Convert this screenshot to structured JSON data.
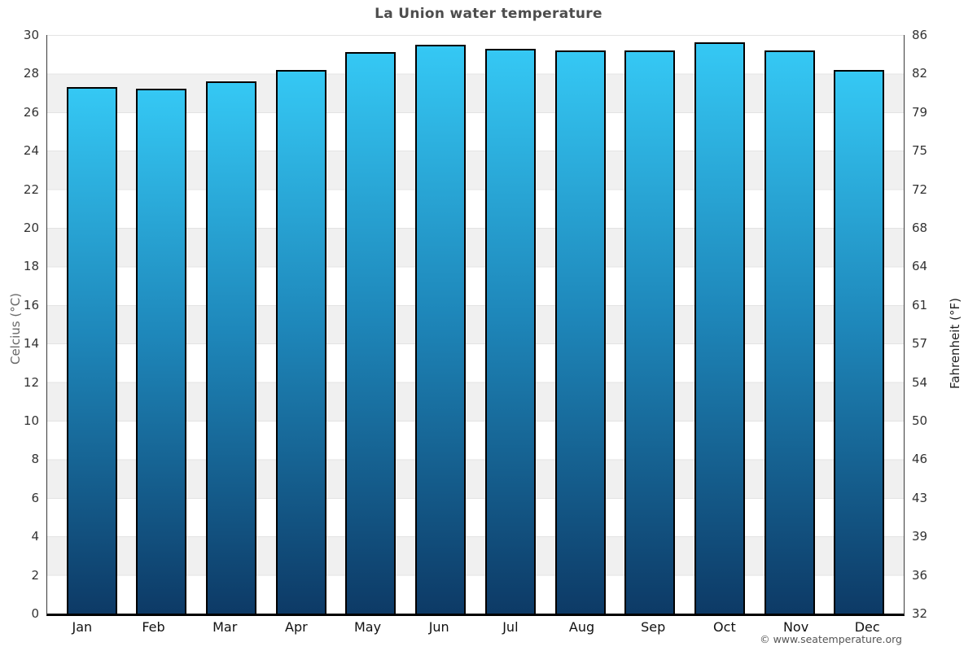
{
  "title": "La Union water temperature",
  "footer": {
    "credit": "© www.seatemperature.org"
  },
  "chart_data": {
    "type": "bar",
    "title": "La Union water temperature",
    "categories": [
      "Jan",
      "Feb",
      "Mar",
      "Apr",
      "May",
      "Jun",
      "Jul",
      "Aug",
      "Sep",
      "Oct",
      "Nov",
      "Dec"
    ],
    "series": [
      {
        "name": "Average water temperature (°C)",
        "values": [
          27.3,
          27.2,
          27.6,
          28.2,
          29.1,
          29.5,
          29.3,
          29.2,
          29.2,
          29.6,
          29.2,
          28.2
        ]
      }
    ],
    "xlabel": "",
    "ylabel_left": "Celcius (°C)",
    "ylabel_right": "Fahrenheit (°F)",
    "ylim_celsius": [
      0,
      30
    ],
    "yticks_celsius": [
      "30",
      "28",
      "26",
      "24",
      "22",
      "20",
      "18",
      "16",
      "14",
      "12",
      "10",
      "8",
      "6",
      "4",
      "2",
      "0"
    ],
    "yticks_fahrenheit": [
      "86",
      "82",
      "79",
      "75",
      "72",
      "68",
      "64",
      "61",
      "57",
      "54",
      "50",
      "46",
      "43",
      "39",
      "36",
      "32"
    ],
    "grid": "horizontal-alternating-bands",
    "legend_position": "none",
    "colors": {
      "bar_gradient_top": "#35c8f4",
      "bar_gradient_mid": "#1e87ba",
      "bar_gradient_bottom": "#0d3a66",
      "bar_border": "#000000",
      "band_gray": "#f0f0f0",
      "gridline": "#e3e3e3",
      "title_text": "#4d4d4d",
      "tick_text": "#333333"
    }
  }
}
